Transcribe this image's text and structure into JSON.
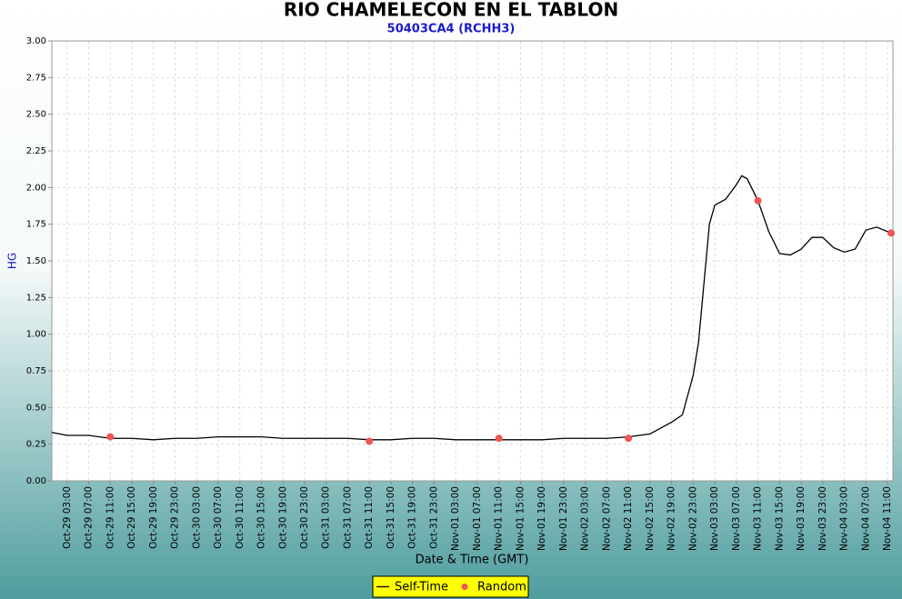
{
  "chart_data": {
    "type": "line",
    "title": "RIO CHAMELECON EN EL TABLON",
    "subtitle": "50403CA4 (RCHH3)",
    "y_label": "HG",
    "x_label": "Date & Time (GMT)",
    "xlim": [
      "Oct-29 00:10",
      "Nov-04 12:00"
    ],
    "xticks": [
      "Oct-29 03:00",
      "Oct-29 07:00",
      "Oct-29 11:00",
      "Oct-29 15:00",
      "Oct-29 19:00",
      "Oct-29 23:00",
      "Oct-30 03:00",
      "Oct-30 07:00",
      "Oct-30 11:00",
      "Oct-30 15:00",
      "Oct-30 19:00",
      "Oct-30 23:00",
      "Oct-31 03:00",
      "Oct-31 07:00",
      "Oct-31 11:00",
      "Oct-31 15:00",
      "Oct-31 19:00",
      "Oct-31 23:00",
      "Nov-01 03:00",
      "Nov-01 07:00",
      "Nov-01 11:00",
      "Nov-01 15:00",
      "Nov-01 19:00",
      "Nov-01 23:00",
      "Nov-02 03:00",
      "Nov-02 07:00",
      "Nov-02 11:00",
      "Nov-02 15:00",
      "Nov-02 19:00",
      "Nov-02 23:00",
      "Nov-03 03:00",
      "Nov-03 07:00",
      "Nov-03 11:00",
      "Nov-03 15:00",
      "Nov-03 19:00",
      "Nov-03 23:00",
      "Nov-04 03:00",
      "Nov-04 07:00",
      "Nov-04 11:00"
    ],
    "ylim": [
      0,
      3
    ],
    "yticks": [
      {
        "value": 0,
        "label": "0.00"
      },
      0.25,
      {
        "value": 0.5,
        "label": "0.50"
      },
      0.75,
      {
        "value": 1,
        "label": "1.00"
      },
      1.25,
      {
        "value": 1.5,
        "label": "1.50"
      },
      1.75,
      {
        "value": 2,
        "label": "2.00"
      },
      2.25,
      {
        "value": 2.5,
        "label": "2.50"
      },
      2.75,
      {
        "value": 3,
        "label": "3.00"
      }
    ],
    "grid": true,
    "legend": "bottom",
    "series": [
      {
        "name": "Self-Time",
        "color": "#000000",
        "kind": "line",
        "x": [
          "Oct-29 00:10",
          "Oct-29 03:00",
          "Oct-29 07:00",
          "Oct-29 11:00",
          "Oct-29 15:00",
          "Oct-29 19:00",
          "Oct-29 23:00",
          "Oct-30 03:00",
          "Oct-30 07:00",
          "Oct-30 11:00",
          "Oct-30 15:00",
          "Oct-30 19:00",
          "Oct-30 23:00",
          "Oct-31 03:00",
          "Oct-31 07:00",
          "Oct-31 11:00",
          "Oct-31 15:00",
          "Oct-31 19:00",
          "Oct-31 23:00",
          "Nov-01 03:00",
          "Nov-01 07:00",
          "Nov-01 11:00",
          "Nov-01 15:00",
          "Nov-01 19:00",
          "Nov-01 23:00",
          "Nov-02 03:00",
          "Nov-02 07:00",
          "Nov-02 11:00",
          "Nov-02 15:00",
          "Nov-02 19:00",
          "Nov-02 21:00",
          "Nov-02 23:00",
          "Nov-03 00:00",
          "Nov-03 01:00",
          "Nov-03 02:00",
          "Nov-03 03:00",
          "Nov-03 05:00",
          "Nov-03 07:00",
          "Nov-03 08:00",
          "Nov-03 09:00",
          "Nov-03 11:00",
          "Nov-03 13:00",
          "Nov-03 15:00",
          "Nov-03 17:00",
          "Nov-03 19:00",
          "Nov-03 21:00",
          "Nov-03 23:00",
          "Nov-04 01:00",
          "Nov-04 03:00",
          "Nov-04 05:00",
          "Nov-04 07:00",
          "Nov-04 09:00",
          "Nov-04 11:40"
        ],
        "values": [
          0.33,
          0.31,
          0.31,
          0.29,
          0.29,
          0.28,
          0.29,
          0.29,
          0.3,
          0.3,
          0.3,
          0.29,
          0.29,
          0.29,
          0.29,
          0.28,
          0.28,
          0.29,
          0.29,
          0.28,
          0.28,
          0.28,
          0.28,
          0.28,
          0.29,
          0.29,
          0.29,
          0.3,
          0.32,
          0.4,
          0.45,
          0.72,
          0.95,
          1.35,
          1.75,
          1.88,
          1.92,
          2.02,
          2.08,
          2.06,
          1.91,
          1.7,
          1.55,
          1.54,
          1.58,
          1.66,
          1.66,
          1.59,
          1.56,
          1.58,
          1.71,
          1.73,
          1.69
        ]
      },
      {
        "name": "Random",
        "color": "#ee5555",
        "kind": "scatter",
        "x": [
          "Oct-29 11:00",
          "Oct-31 11:00",
          "Nov-01 11:00",
          "Nov-02 11:00",
          "Nov-03 11:00",
          "Nov-04 11:40"
        ],
        "values": [
          0.3,
          0.27,
          0.29,
          0.29,
          1.91,
          1.69
        ]
      }
    ]
  }
}
